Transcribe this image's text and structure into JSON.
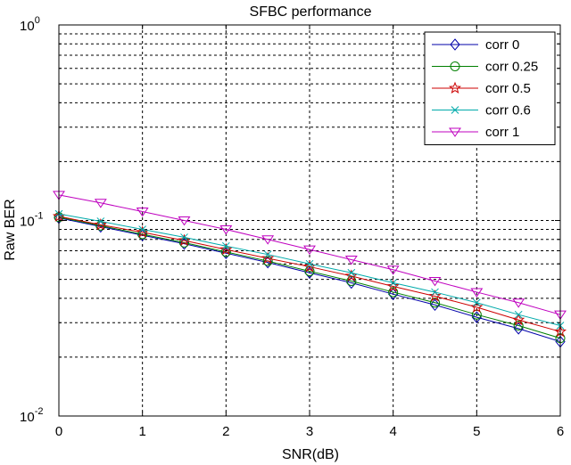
{
  "chart_data": {
    "type": "line",
    "title": "SFBC performance",
    "xlabel": "SNR(dB)",
    "ylabel": "Raw BER",
    "xlim": [
      0,
      6
    ],
    "ylim": [
      0.01,
      1
    ],
    "yscale": "log",
    "grid": true,
    "grid_style": "dashed",
    "legend_position": "top-right",
    "x_ticks": [
      "0",
      "1",
      "2",
      "3",
      "4",
      "5",
      "6"
    ],
    "y_ticks": [
      {
        "base": "10",
        "exp": "0"
      },
      {
        "base": "10",
        "exp": "-1"
      },
      {
        "base": "10",
        "exp": "-2"
      }
    ],
    "x": [
      0,
      0.5,
      1,
      1.5,
      2,
      2.5,
      3,
      3.5,
      4,
      4.5,
      5,
      5.5,
      6
    ],
    "series": [
      {
        "name": "corr 0",
        "color": "#0000aa",
        "marker": "diamond",
        "values": [
          0.103,
          0.093,
          0.084,
          0.076,
          0.068,
          0.061,
          0.054,
          0.048,
          0.042,
          0.037,
          0.032,
          0.028,
          0.024
        ]
      },
      {
        "name": "corr 0.25",
        "color": "#007f00",
        "marker": "circle",
        "values": [
          0.104,
          0.094,
          0.085,
          0.077,
          0.069,
          0.062,
          0.055,
          0.049,
          0.043,
          0.038,
          0.033,
          0.029,
          0.025
        ]
      },
      {
        "name": "corr 0.5",
        "color": "#cc0000",
        "marker": "star",
        "values": [
          0.105,
          0.095,
          0.087,
          0.079,
          0.071,
          0.064,
          0.058,
          0.052,
          0.046,
          0.041,
          0.036,
          0.031,
          0.027
        ]
      },
      {
        "name": "corr 0.6",
        "color": "#00aaaa",
        "marker": "x",
        "values": [
          0.108,
          0.099,
          0.09,
          0.082,
          0.074,
          0.067,
          0.06,
          0.054,
          0.048,
          0.043,
          0.038,
          0.033,
          0.029
        ]
      },
      {
        "name": "corr 1",
        "color": "#bf00bf",
        "marker": "triangle-down",
        "values": [
          0.135,
          0.123,
          0.111,
          0.1,
          0.09,
          0.08,
          0.071,
          0.063,
          0.056,
          0.049,
          0.043,
          0.038,
          0.033
        ]
      }
    ]
  }
}
